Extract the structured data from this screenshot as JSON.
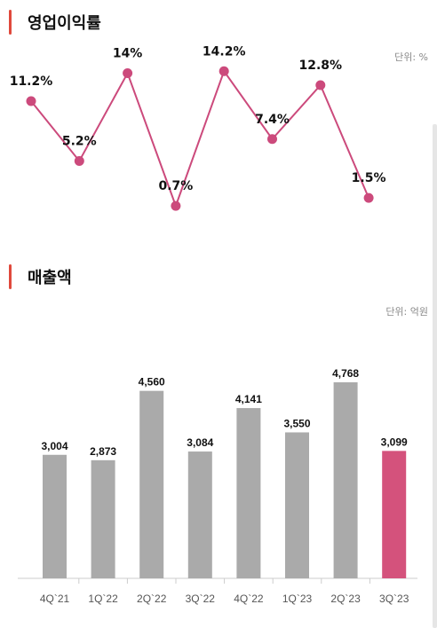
{
  "sections": {
    "margin": {
      "title": "영업이익률",
      "unit": "단위: %"
    },
    "sales": {
      "title": "매출액",
      "unit": "단위: 억원"
    }
  },
  "chart_data": [
    {
      "type": "line",
      "categories": [
        "4Q`21",
        "1Q`22",
        "2Q`22",
        "3Q`22",
        "4Q`22",
        "1Q`23",
        "2Q`23",
        "3Q`23"
      ],
      "values": [
        11.2,
        5.2,
        14,
        0.7,
        14.2,
        7.4,
        12.8,
        1.5
      ],
      "labels": [
        "11.2%",
        "5.2%",
        "14%",
        "0.7%",
        "14.2%",
        "7.4%",
        "12.8%",
        "1.5%"
      ],
      "title": "영업이익률",
      "ylim": [
        0,
        16
      ],
      "line_color": "#cc4a7c",
      "grid": false
    },
    {
      "type": "bar",
      "categories": [
        "4Q`21",
        "1Q`22",
        "2Q`22",
        "3Q`22",
        "4Q`22",
        "1Q`23",
        "2Q`23",
        "3Q`23"
      ],
      "values": [
        3004,
        2873,
        4560,
        3084,
        4141,
        3550,
        4768,
        3099
      ],
      "labels": [
        "3,004",
        "2,873",
        "4,560",
        "3,084",
        "4,141",
        "3,550",
        "4,768",
        "3,099"
      ],
      "title": "매출액",
      "ylim": [
        0,
        6300
      ],
      "bar_color": "#aaaaaa",
      "highlight_color": "#d4527c",
      "highlight_index": 7,
      "grid": false
    }
  ]
}
